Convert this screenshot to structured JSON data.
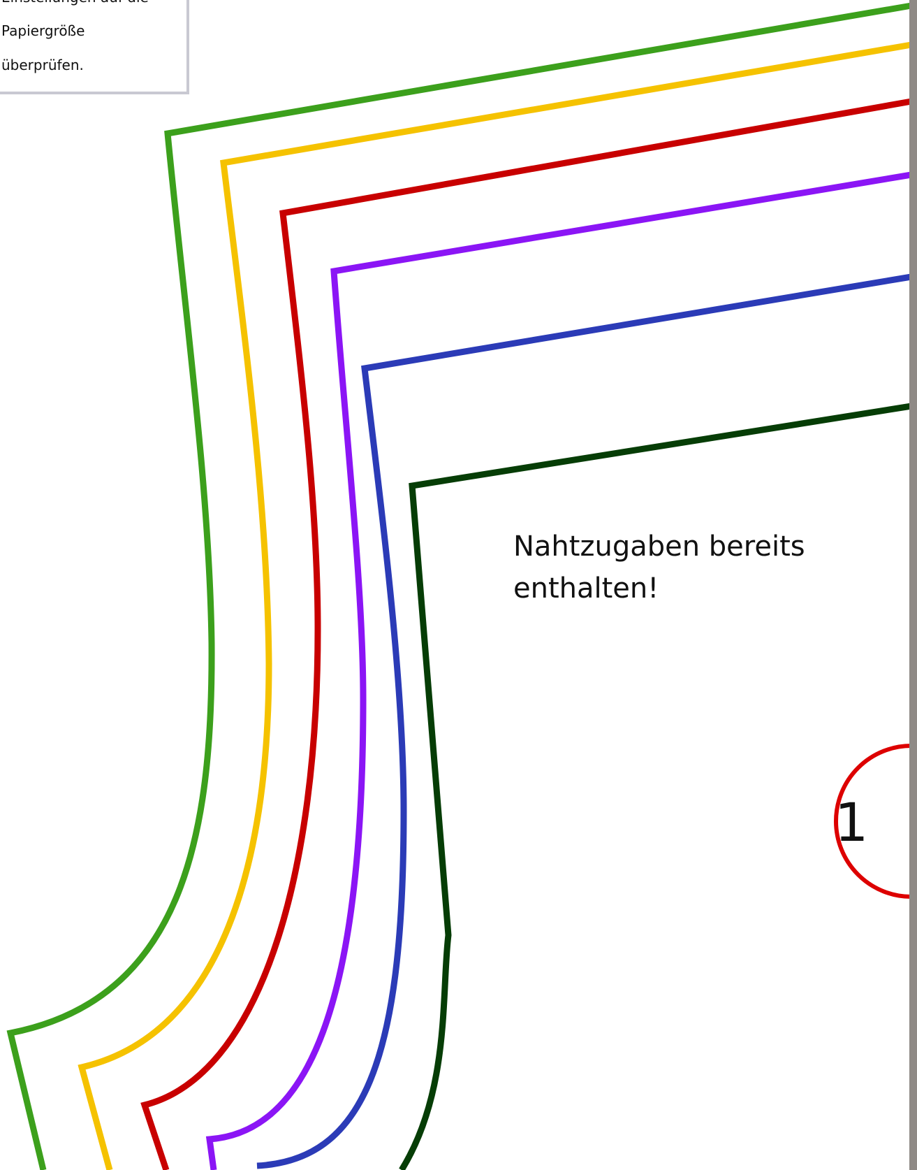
{
  "instructions": {
    "lines": [
      "Einstellungen auf die",
      "Papiergröße",
      "überprüfen."
    ]
  },
  "seam_note": {
    "line1": "Nahtzugaben bereits",
    "line2": "enthalten!"
  },
  "piece_marker": {
    "number": "1",
    "color": "#dd0000"
  },
  "size_lines": [
    {
      "color": "#3ca01c",
      "icon": "size-line-green"
    },
    {
      "color": "#f5c200",
      "icon": "size-line-yellow"
    },
    {
      "color": "#c80000",
      "icon": "size-line-red"
    },
    {
      "color": "#8b15f5",
      "icon": "size-line-purple"
    },
    {
      "color": "#2b3bb7",
      "icon": "size-line-blue"
    },
    {
      "color": "#063d06",
      "icon": "size-line-dark-green"
    }
  ],
  "colors": {
    "note_border": "#c9c9d2",
    "page_edge": "#8f8a86"
  }
}
